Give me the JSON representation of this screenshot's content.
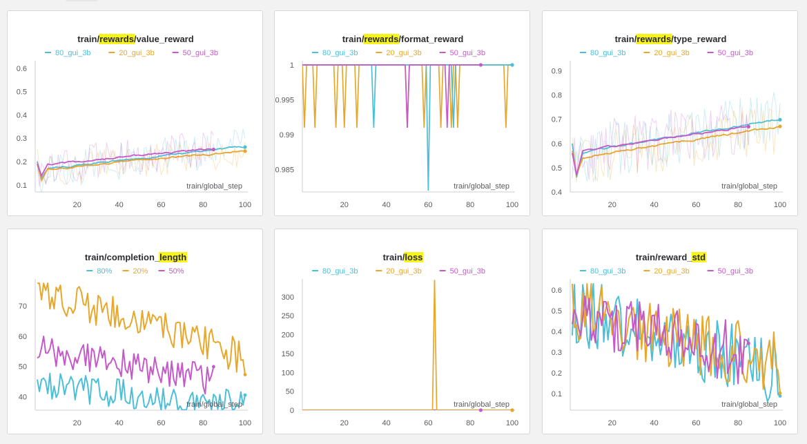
{
  "colors": {
    "series_80": "#4bbfd8",
    "series_20": "#e7a72b",
    "series_50": "#c45ac8",
    "highlight": "#f7f31c",
    "axis": "#cfcfd3",
    "tick_text": "#5a5a5e",
    "title_text": "#2c2c30"
  },
  "chart_data": [
    {
      "id": "value_reward",
      "type": "line",
      "title_parts": [
        "train/",
        "rewards",
        "/value_reward"
      ],
      "highlight_index": 1,
      "legend": [
        "80_gui_3b",
        "20_gui_3b",
        "50_gui_3b"
      ],
      "xlabel": "train/global_step",
      "xlim": [
        0,
        100
      ],
      "ylim": [
        0.07,
        0.62
      ],
      "xticks": [
        20,
        40,
        60,
        80,
        100
      ],
      "yticks": [
        0.1,
        0.2,
        0.3,
        0.4,
        0.5,
        0.6
      ],
      "ytick_labels": [
        "0.1",
        "0.2",
        "0.3",
        "0.4",
        "0.5",
        "0.6"
      ],
      "smoothed": true,
      "series": [
        {
          "name": "80_gui_3b",
          "end": 100,
          "start": 0.2,
          "dip": 0.13,
          "trend_start": 0.16,
          "trend_end": 0.265,
          "noise": 0.08,
          "seed": 3
        },
        {
          "name": "20_gui_3b",
          "end": 100,
          "start": 0.19,
          "dip": 0.12,
          "trend_start": 0.16,
          "trend_end": 0.245,
          "noise": 0.07,
          "seed": 7
        },
        {
          "name": "50_gui_3b",
          "end": 85,
          "start": 0.19,
          "dip": 0.14,
          "trend_start": 0.18,
          "trend_end": 0.268,
          "noise": 0.08,
          "seed": 11
        }
      ]
    },
    {
      "id": "format_reward",
      "type": "line",
      "title_parts": [
        "train/",
        "rewards",
        "/format_reward"
      ],
      "highlight_index": 1,
      "legend": [
        "80_gui_3b",
        "20_gui_3b",
        "50_gui_3b"
      ],
      "xlabel": "train/global_step",
      "xlim": [
        0,
        100
      ],
      "ylim": [
        0.9818,
        1.0002
      ],
      "xticks": [
        20,
        40,
        60,
        80,
        100
      ],
      "yticks": [
        0.985,
        0.99,
        0.995,
        1
      ],
      "ytick_labels": [
        "0.985",
        "0.99",
        "0.995",
        "1"
      ],
      "smoothed": false,
      "spikes": [
        {
          "name": "20_gui_3b",
          "end": 100,
          "drops": [
            [
              1,
              0.991
            ],
            [
              6,
              0.991
            ],
            [
              16,
              0.991
            ],
            [
              20,
              0.991
            ],
            [
              26,
              0.991
            ],
            [
              50,
              0.991
            ],
            [
              58,
              0.991
            ],
            [
              66,
              0.991
            ],
            [
              71,
              0.991
            ],
            [
              74,
              0.991
            ],
            [
              97,
              0.991
            ]
          ]
        },
        {
          "name": "80_gui_3b",
          "end": 100,
          "drops": [
            [
              34,
              0.991
            ],
            [
              60,
              0.982
            ],
            [
              72,
              0.991
            ]
          ]
        },
        {
          "name": "50_gui_3b",
          "end": 85,
          "drops": [
            [
              50,
              0.991
            ],
            [
              69,
              0.991
            ]
          ]
        }
      ]
    },
    {
      "id": "type_reward",
      "type": "line",
      "title_parts": [
        "train/",
        "rewards",
        "/type_reward"
      ],
      "highlight_index": 1,
      "legend": [
        "80_gui_3b",
        "20_gui_3b",
        "50_gui_3b"
      ],
      "xlabel": "train/global_step",
      "xlim": [
        0,
        100
      ],
      "ylim": [
        0.4,
        0.93
      ],
      "xticks": [
        20,
        40,
        60,
        80,
        100
      ],
      "yticks": [
        0.4,
        0.5,
        0.6,
        0.7,
        0.8,
        0.9
      ],
      "ytick_labels": [
        "0.4",
        "0.5",
        "0.6",
        "0.7",
        "0.8",
        "0.9"
      ],
      "smoothed": true,
      "series": [
        {
          "name": "80_gui_3b",
          "end": 100,
          "start": 0.6,
          "dip": 0.46,
          "trend_start": 0.55,
          "trend_end": 0.7,
          "noise": 0.12,
          "seed": 13
        },
        {
          "name": "20_gui_3b",
          "end": 100,
          "start": 0.57,
          "dip": 0.47,
          "trend_start": 0.53,
          "trend_end": 0.67,
          "noise": 0.11,
          "seed": 17
        },
        {
          "name": "50_gui_3b",
          "end": 85,
          "start": 0.56,
          "dip": 0.47,
          "trend_start": 0.56,
          "trend_end": 0.688,
          "noise": 0.12,
          "seed": 19
        }
      ]
    },
    {
      "id": "completion_length",
      "type": "line",
      "title_parts": [
        "train/completion_",
        "length",
        ""
      ],
      "highlight_index": 1,
      "legend": [
        "80%",
        "20%",
        "50%"
      ],
      "xlabel": "train/global_step",
      "xlim": [
        0,
        100
      ],
      "ylim": [
        35.5,
        78
      ],
      "xticks": [
        20,
        40,
        60,
        80,
        100
      ],
      "yticks": [
        40,
        50,
        60,
        70
      ],
      "ytick_labels": [
        "40",
        "50",
        "60",
        "70"
      ],
      "smoothed": false,
      "series": [
        {
          "name": "80%",
          "end": 100,
          "trend_start": 43.5,
          "trend_end": 37,
          "noise": 5,
          "seed": 23,
          "clip": [
            35.6,
            78
          ]
        },
        {
          "name": "20%",
          "end": 100,
          "trend_start": 75.5,
          "trend_end": 53,
          "noise": 6,
          "seed": 29,
          "clip": [
            35.6,
            77.5
          ]
        },
        {
          "name": "50%",
          "end": 85,
          "trend_start": 56,
          "trend_end": 43.5,
          "noise": 5,
          "seed": 31,
          "clip": [
            35.6,
            78
          ]
        }
      ]
    },
    {
      "id": "loss",
      "type": "line",
      "title_parts": [
        "train/",
        "loss",
        ""
      ],
      "highlight_index": 1,
      "legend": [
        "80_gui_3b",
        "20_gui_3b",
        "50_gui_3b"
      ],
      "xlabel": "train/global_step",
      "xlim": [
        0,
        100
      ],
      "ylim": [
        0,
        340
      ],
      "xticks": [
        20,
        40,
        60,
        80,
        100
      ],
      "yticks": [
        0,
        50,
        100,
        150,
        200,
        250,
        300
      ],
      "ytick_labels": [
        "0",
        "50",
        "100",
        "150",
        "200",
        "250",
        "300"
      ],
      "smoothed": false,
      "spikes": [
        {
          "name": "80_gui_3b",
          "end": 100,
          "base": 0,
          "drops": []
        },
        {
          "name": "50_gui_3b",
          "end": 85,
          "base": 0,
          "drops": []
        },
        {
          "name": "20_gui_3b",
          "end": 100,
          "base": 0,
          "drops": [
            [
              63,
              345
            ]
          ]
        }
      ]
    },
    {
      "id": "reward_std",
      "type": "line",
      "title_parts": [
        "train/reward_",
        "std",
        ""
      ],
      "highlight_index": 1,
      "legend": [
        "80_gui_3b",
        "20_gui_3b",
        "50_gui_3b"
      ],
      "xlabel": "train/global_step",
      "xlim": [
        0,
        100
      ],
      "ylim": [
        0.02,
        0.64
      ],
      "xticks": [
        20,
        40,
        60,
        80,
        100
      ],
      "yticks": [
        0.1,
        0.2,
        0.3,
        0.4,
        0.5,
        0.6
      ],
      "ytick_labels": [
        "0.1",
        "0.2",
        "0.3",
        "0.4",
        "0.5",
        "0.6"
      ],
      "smoothed": false,
      "series": [
        {
          "name": "80_gui_3b",
          "end": 100,
          "trend_start": 0.5,
          "trend_end": 0.21,
          "noise": 0.17,
          "seed": 37,
          "clip": [
            0.03,
            0.63
          ]
        },
        {
          "name": "20_gui_3b",
          "end": 100,
          "trend_start": 0.5,
          "trend_end": 0.25,
          "noise": 0.16,
          "seed": 41,
          "clip": [
            0.03,
            0.63
          ]
        },
        {
          "name": "50_gui_3b",
          "end": 85,
          "trend_start": 0.5,
          "trend_end": 0.24,
          "noise": 0.15,
          "seed": 43,
          "clip": [
            0.03,
            0.63
          ]
        }
      ]
    }
  ]
}
